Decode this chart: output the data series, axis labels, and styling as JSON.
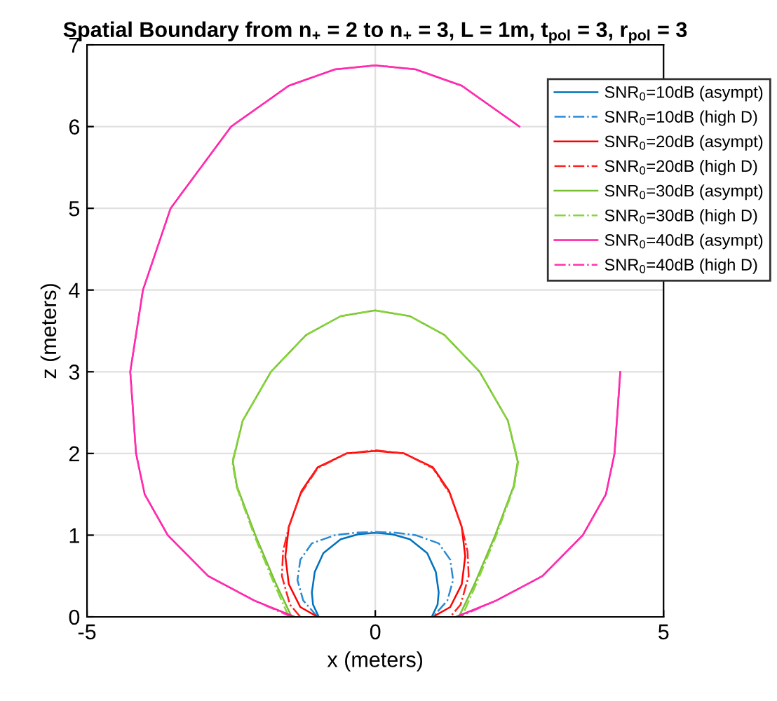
{
  "chart_data": {
    "type": "line",
    "title": "Spatial Boundary from n$_{+}$ = 2 to n$_{+}$ = 3, L = 1m, t$_{pol}$ = 3, r$_{pol}$ = 3",
    "xlabel": "x (meters)",
    "ylabel": "z (meters)",
    "xlim": [
      -5,
      5
    ],
    "ylim": [
      0,
      7
    ],
    "xticks": [
      -5,
      0,
      5
    ],
    "yticks": [
      0,
      1,
      2,
      3,
      4,
      5,
      6,
      7
    ],
    "grid": true,
    "legend": "top right",
    "series": [
      {
        "name": "SNR$_{0}$=10dB (asympt)",
        "color": "#0072bd",
        "line_style": "solid",
        "x": [
          -0.98,
          -1.08,
          -1.1,
          -1.05,
          -0.9,
          -0.6,
          -0.3,
          0,
          0.3,
          0.6,
          0.9,
          1.05,
          1.1,
          1.08,
          0.98
        ],
        "values": [
          0,
          0.15,
          0.3,
          0.55,
          0.78,
          0.95,
          1.01,
          1.03,
          1.01,
          0.95,
          0.78,
          0.55,
          0.3,
          0.15,
          0
        ]
      },
      {
        "name": "SNR$_{0}$=10dB (high D)",
        "color": "#2a8ad4",
        "line_style": "dashdot",
        "x": [
          -1.0,
          -1.25,
          -1.35,
          -1.3,
          -1.1,
          -0.7,
          -0.35,
          0,
          0.35,
          0.7,
          1.1,
          1.3,
          1.35,
          1.25,
          1.0
        ],
        "values": [
          0,
          0.2,
          0.45,
          0.7,
          0.9,
          1.0,
          1.03,
          1.04,
          1.03,
          1.0,
          0.9,
          0.7,
          0.45,
          0.2,
          0
        ]
      },
      {
        "name": "SNR$_{0}$=20dB (asympt)",
        "color": "#ff0000",
        "line_style": "solid",
        "x": [
          -1.0,
          -1.3,
          -1.5,
          -1.56,
          -1.5,
          -1.28,
          -1.0,
          -0.5,
          0,
          0.5,
          1.0,
          1.28,
          1.5,
          1.56,
          1.5,
          1.3,
          1.0
        ],
        "values": [
          0,
          0.12,
          0.4,
          0.74,
          1.1,
          1.54,
          1.83,
          2.0,
          2.03,
          2.0,
          1.83,
          1.54,
          1.1,
          0.74,
          0.4,
          0.12,
          0
        ]
      },
      {
        "name": "SNR$_{0}$=20dB (high D)",
        "color": "#ff2020",
        "line_style": "dashdot",
        "x": [
          -1.3,
          -1.48,
          -1.62,
          -1.6,
          -1.5,
          -1.3,
          -1.0,
          -0.5,
          0,
          0.5,
          1.0,
          1.3,
          1.5,
          1.6,
          1.62,
          1.48,
          1.3
        ],
        "values": [
          0,
          0.15,
          0.5,
          0.8,
          1.1,
          1.5,
          1.82,
          2.0,
          2.04,
          2.0,
          1.82,
          1.5,
          1.1,
          0.8,
          0.5,
          0.15,
          0
        ]
      },
      {
        "name": "SNR$_{0}$=30dB (asympt)",
        "color": "#77be32",
        "line_style": "solid",
        "x": [
          -1.45,
          -1.72,
          -2.08,
          -2.4,
          -2.47,
          -2.3,
          -1.81,
          -1.2,
          -0.6,
          0,
          0.6,
          1.2,
          1.81,
          2.3,
          2.47,
          2.4,
          2.08,
          1.72,
          1.45
        ],
        "values": [
          0,
          0.4,
          1.0,
          1.6,
          1.9,
          2.4,
          3.0,
          3.45,
          3.68,
          3.75,
          3.68,
          3.45,
          3.0,
          2.4,
          1.9,
          1.6,
          1.0,
          0.4,
          0
        ]
      },
      {
        "name": "SNR$_{0}$=30dB (high D)",
        "color": "#86d63a",
        "line_style": "dashdot",
        "x": [
          -1.5,
          -1.75,
          -2.1,
          -2.41,
          -2.48,
          -2.3,
          -1.81,
          -1.2,
          -0.6,
          0,
          0.6,
          1.2,
          1.81,
          2.3,
          2.48,
          2.41,
          2.1,
          1.75,
          1.5
        ],
        "values": [
          0,
          0.4,
          1.0,
          1.6,
          1.9,
          2.4,
          3.0,
          3.45,
          3.68,
          3.75,
          3.68,
          3.45,
          3.0,
          2.4,
          1.9,
          1.6,
          1.0,
          0.4,
          0
        ]
      },
      {
        "name": "SNR$_{0}$=40dB (asympt)",
        "color": "#ff19a6",
        "line_style": "solid",
        "x": [
          -1.4,
          -2.1,
          -2.9,
          -3.6,
          -4.0,
          -4.15,
          -4.25,
          -4.03,
          -3.55,
          -2.5,
          -1.5,
          -0.7,
          0,
          0.7,
          1.5,
          2.5,
          3.55,
          4.03,
          4.25,
          4.15,
          4.0,
          3.6,
          2.9,
          2.1,
          1.4
        ],
        "values": [
          0,
          0.2,
          0.5,
          1.0,
          1.5,
          2.0,
          3.0,
          4.0,
          5.0,
          6.0,
          6.5,
          6.7,
          6.75,
          6.7,
          6.5,
          6.0,
          null,
          null,
          3.0,
          2.0,
          1.5,
          1.0,
          0.5,
          0.2,
          0
        ]
      },
      {
        "name": "SNR$_{0}$=40dB (high D)",
        "color": "#ff33b0",
        "line_style": "dashdot",
        "x": [
          -1.45,
          -2.1,
          -2.9,
          -3.6,
          -4.0,
          -4.15,
          -4.25,
          -4.03,
          -3.55,
          -2.5,
          -1.5,
          -0.7,
          0,
          0.7,
          1.5,
          2.5,
          3.55,
          4.03,
          4.25,
          4.15,
          4.0,
          3.6,
          2.9,
          2.1,
          1.45
        ],
        "values": [
          0,
          0.2,
          0.5,
          1.0,
          1.5,
          2.0,
          3.0,
          4.0,
          5.0,
          6.0,
          6.5,
          6.7,
          6.75,
          6.7,
          6.5,
          6.0,
          null,
          null,
          3.0,
          2.0,
          1.5,
          1.0,
          0.5,
          0.2,
          0
        ]
      }
    ]
  }
}
